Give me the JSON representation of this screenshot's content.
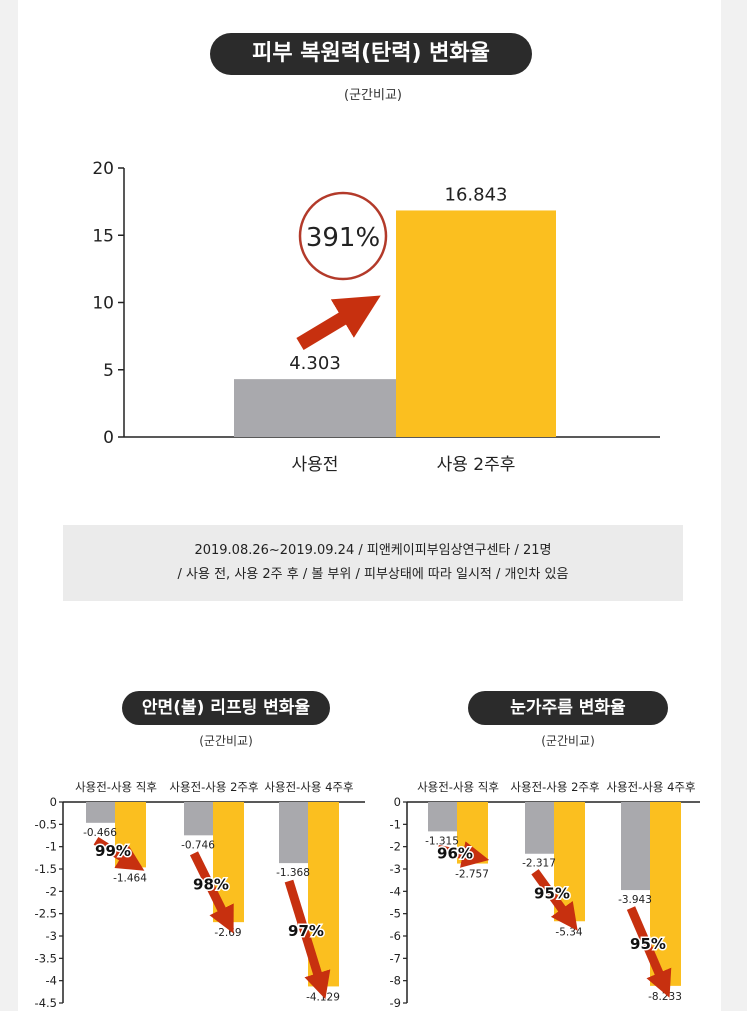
{
  "main": {
    "title": "피부 복원력(탄력) 변화율",
    "subtitle": "(군간비교)",
    "badge": "391%"
  },
  "info": {
    "line1": "2019.08.26~2019.09.24 / 피앤케이피부임상연구센타 / 21명",
    "line2": "/ 사용 전, 사용 2주 후 / 볼 부위 / 피부상태에 따라 일시적 / 개인차 있음"
  },
  "left_panel": {
    "title": "안면(볼) 리프팅 변화율",
    "subtitle": "(군간비교)"
  },
  "right_panel": {
    "title": "눈가주름 변화율",
    "subtitle": "(군간비교)"
  },
  "colors": {
    "before": "#a9a9ad",
    "after": "#fbbf1f",
    "arrow": "#c7300f",
    "circle": "#b33a2a"
  },
  "chart_data": [
    {
      "type": "bar",
      "categories": [
        "사용전",
        "사용 2주후"
      ],
      "values": [
        4.303,
        16.843
      ],
      "value_labels": [
        "4.303",
        "16.843"
      ],
      "ylim": [
        0,
        20
      ],
      "yticks": [
        0,
        5,
        10,
        15,
        20
      ],
      "ytick_labels": [
        "0",
        "5",
        "10",
        "15",
        "20"
      ],
      "annotation": "391%"
    },
    {
      "type": "bar",
      "categories": [
        "사용전-사용 직후",
        "사용전-사용 2주후",
        "사용전-사용 4주후"
      ],
      "before_values": [
        -0.466,
        -0.746,
        -1.368
      ],
      "after_values": [
        -1.464,
        -2.69,
        -4.129
      ],
      "before_labels": [
        "-0.466",
        "-0.746",
        "-1.368"
      ],
      "after_labels": [
        "-1.464",
        "-2.69",
        "-4.129"
      ],
      "percents": [
        "99%",
        "98%",
        "97%"
      ],
      "ylim": [
        -4.5,
        0
      ],
      "yticks": [
        0,
        -0.5,
        -1,
        -1.5,
        -2,
        -2.5,
        -3,
        -3.5,
        -4,
        -4.5
      ],
      "ytick_labels": [
        "0",
        "-0.5",
        "-1",
        "-1.5",
        "-2",
        "-2.5",
        "-3",
        "-3.5",
        "-4",
        "-4.5"
      ]
    },
    {
      "type": "bar",
      "categories": [
        "사용전-사용 직후",
        "사용전-사용 2주후",
        "사용전-사용 4주후"
      ],
      "before_values": [
        -1.315,
        -2.317,
        -3.943
      ],
      "after_values": [
        -2.757,
        -5.34,
        -8.233
      ],
      "before_labels": [
        "-1.315",
        "-2.317",
        "-3.943"
      ],
      "after_labels": [
        "-2.757",
        "-5.34",
        "-8.233"
      ],
      "percents": [
        "96%",
        "95%",
        "95%"
      ],
      "ylim": [
        -9,
        0
      ],
      "yticks": [
        0,
        -1,
        -2,
        -3,
        -4,
        -5,
        -6,
        -7,
        -8,
        -9
      ],
      "ytick_labels": [
        "0",
        "-1",
        "-2",
        "-3",
        "-4",
        "-5",
        "-6",
        "-7",
        "-8",
        "-9"
      ]
    }
  ]
}
